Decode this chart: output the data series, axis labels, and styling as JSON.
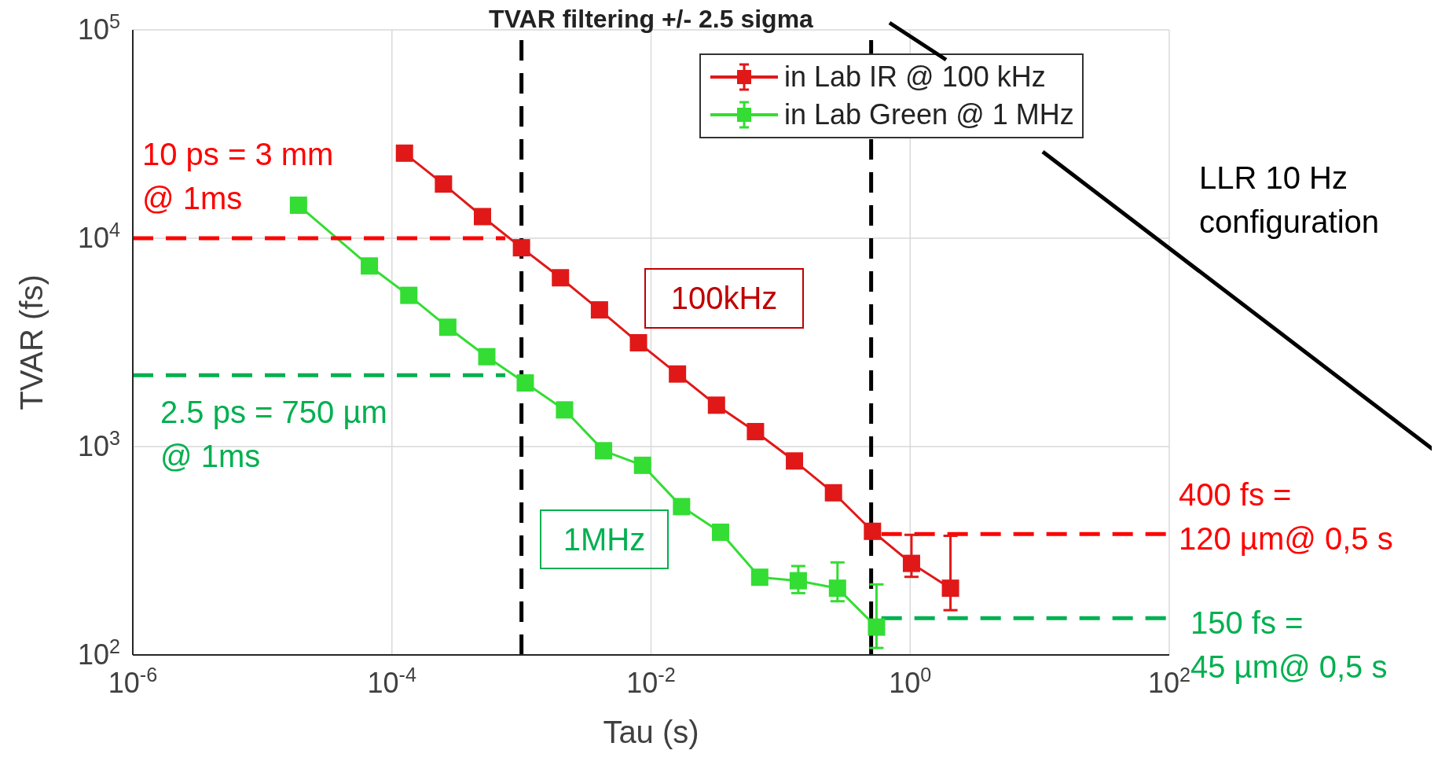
{
  "chart_data": {
    "type": "line",
    "title": "TVAR filtering +/- 2.5 sigma",
    "xlabel": "Tau (s)",
    "ylabel": "TVAR (fs)",
    "log": "xy",
    "grid": true,
    "legend": "top right",
    "marker": "square",
    "line_style": "solid",
    "xlim": [
      1e-06,
      100
    ],
    "ylim": [
      100,
      100000
    ],
    "xticks": [
      {
        "value": 1e-06,
        "label": "10$^{-6}$"
      },
      {
        "value": 0.0001,
        "label": "10$^{-4}$"
      },
      {
        "value": 0.01,
        "label": "10$^{-2}$"
      },
      {
        "value": 1,
        "label": "10$^{0}$"
      },
      {
        "value": 100,
        "label": "10$^{2}$"
      }
    ],
    "yticks": [
      {
        "value": 100,
        "label": "10$^{2}$"
      },
      {
        "value": 1000,
        "label": "10$^{3}$"
      },
      {
        "value": 10000,
        "label": "10$^{4}$"
      },
      {
        "value": 100000,
        "label": "10$^{5}$"
      }
    ],
    "series": [
      {
        "name": "in Lab IR @ 100 kHz",
        "color": "#e01818",
        "x": [
          0.000125,
          0.00025,
          0.0005,
          0.001,
          0.002,
          0.004,
          0.008,
          0.016,
          0.032,
          0.064,
          0.128,
          0.256,
          0.512,
          1.024,
          2.048
        ],
        "values": [
          25600,
          18200,
          12700,
          9000,
          6460,
          4530,
          3150,
          2230,
          1580,
          1180,
          853,
          600,
          392,
          275,
          209
        ],
        "errors": [
          null,
          null,
          null,
          null,
          null,
          null,
          null,
          null,
          null,
          null,
          null,
          null,
          null,
          [
            237,
            377
          ],
          [
            164,
            373
          ]
        ]
      },
      {
        "name": "in Lab Green @ 1 MHz",
        "color": "#33dd33",
        "x": [
          1.9e-05,
          6.7e-05,
          0.000135,
          0.00027,
          0.00054,
          0.00107,
          0.00215,
          0.0043,
          0.0086,
          0.0172,
          0.0344,
          0.069,
          0.137,
          0.275,
          0.55
        ],
        "values": [
          14400,
          7360,
          5320,
          3740,
          2700,
          2020,
          1500,
          955,
          813,
          515,
          388,
          236,
          227,
          209,
          136
        ],
        "errors": [
          null,
          null,
          null,
          null,
          null,
          null,
          null,
          null,
          null,
          null,
          null,
          null,
          [
            198,
            267
          ],
          [
            181,
            278
          ],
          [
            108,
            218
          ]
        ]
      },
      {
        "type": "line",
        "color": "#ff0000",
        "line_style": "dashed",
        "marker": "none",
        "x": [
          1e-06,
          0.00075
        ],
        "values": [
          10000,
          10000
        ]
      },
      {
        "type": "line",
        "color": "#00b050",
        "line_style": "dashed",
        "marker": "none",
        "x": [
          1e-06,
          0.00075
        ],
        "values": [
          2200,
          2200
        ]
      },
      {
        "type": "line",
        "color": "#ff0000",
        "line_style": "dashed",
        "marker": "none",
        "x": [
          0.6,
          100
        ],
        "values": [
          380,
          380
        ]
      },
      {
        "type": "line",
        "color": "#00b050",
        "line_style": "dashed",
        "marker": "none",
        "x": [
          0.6,
          100
        ],
        "values": [
          150,
          150
        ]
      }
    ],
    "ref_lines": [
      {
        "axis": "x",
        "value": 0.001,
        "color": "#000000",
        "line_style": "dashed"
      },
      {
        "axis": "x",
        "value": 0.5,
        "color": "#000000",
        "line_style": "dashed"
      }
    ],
    "annotations": [
      "10 ps = 3 mm\n@ 1ms",
      "2.5 ps = 750 µm\n@ 1ms",
      "100kHz",
      "1MHz",
      "LLR 10 Hz\nconfiguration",
      "400 fs =\n120 µm@ 0,5 s",
      "150 fs =\n45 µm@ 0,5 s"
    ]
  }
}
